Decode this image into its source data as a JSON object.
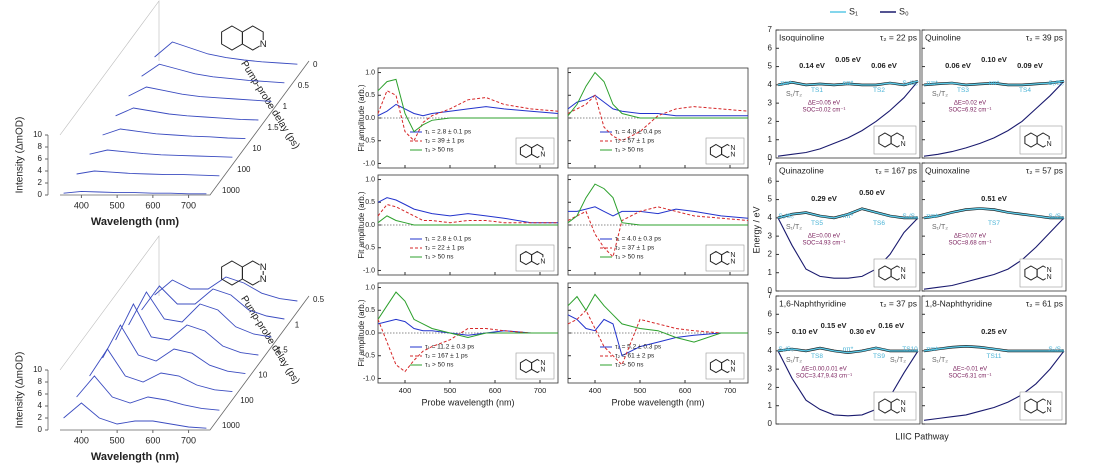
{
  "chart_data": [
    {
      "type": "waterfall",
      "xlabel": "Wavelength (nm)",
      "ylabel": "Intensity (ΔmOD)",
      "zlabel": "Pump-probe delay (ps)",
      "x": [
        350,
        400,
        450,
        500,
        550,
        600,
        650,
        700,
        750
      ],
      "xlim": [
        340,
        760
      ],
      "xticks": [
        400,
        500,
        600,
        700
      ],
      "ylim": [
        0,
        10
      ],
      "yticks": [
        0,
        2,
        4,
        6,
        8,
        10
      ],
      "zticks": [
        0,
        0.5,
        1,
        1.5,
        10,
        100,
        1000
      ],
      "color": "#3b4cc0",
      "atoms": [
        "N"
      ],
      "traces": [
        [
          0.3,
          0.6,
          0.5,
          0.4,
          0.4,
          0.3,
          0.3,
          0.2,
          0.2
        ],
        [
          0.5,
          1.0,
          0.8,
          0.6,
          0.5,
          0.4,
          0.4,
          0.3,
          0.2
        ],
        [
          0.8,
          1.5,
          1.2,
          0.9,
          0.7,
          0.6,
          0.5,
          0.4,
          0.3
        ],
        [
          1.0,
          2.0,
          1.6,
          1.2,
          1.0,
          0.8,
          0.7,
          0.5,
          0.4
        ],
        [
          1.2,
          2.5,
          2.0,
          1.5,
          1.2,
          1.0,
          0.8,
          0.6,
          0.5
        ],
        [
          1.5,
          3.0,
          2.4,
          1.8,
          1.4,
          1.2,
          1.0,
          0.8,
          0.6
        ],
        [
          1.8,
          3.8,
          3.0,
          2.2,
          1.7,
          1.4,
          1.1,
          0.9,
          0.7
        ],
        [
          2.0,
          4.5,
          3.5,
          2.5,
          1.9,
          1.5,
          1.2,
          1.0,
          0.8
        ]
      ]
    },
    {
      "type": "waterfall",
      "xlabel": "Wavelength (nm)",
      "ylabel": "Intensity (ΔmOD)",
      "zlabel": "Pump-probe delay (ps)",
      "x": [
        350,
        400,
        450,
        500,
        550,
        600,
        650,
        700,
        750
      ],
      "xlim": [
        340,
        760
      ],
      "xticks": [
        400,
        500,
        600,
        700
      ],
      "ylim": [
        0,
        10
      ],
      "yticks": [
        0,
        2,
        4,
        6,
        8,
        10
      ],
      "zticks": [
        0.5,
        1,
        1.5,
        10,
        100,
        1000
      ],
      "color": "#3b4cc0",
      "atoms": [
        "N",
        "N"
      ],
      "traces": [
        [
          2.0,
          4.5,
          2.0,
          1.0,
          1.5,
          1.5,
          1.0,
          0.5,
          0.3
        ],
        [
          2.5,
          6.0,
          2.5,
          1.5,
          2.5,
          2.0,
          1.2,
          0.6,
          0.3
        ],
        [
          3.0,
          7.5,
          3.0,
          2.0,
          3.5,
          3.0,
          1.5,
          0.7,
          0.4
        ],
        [
          3.0,
          8.5,
          3.5,
          2.5,
          4.5,
          3.8,
          1.8,
          0.8,
          0.4
        ],
        [
          3.0,
          9.0,
          3.5,
          3.0,
          5.5,
          4.5,
          2.0,
          0.9,
          0.5
        ],
        [
          2.5,
          8.0,
          3.5,
          3.0,
          6.0,
          5.0,
          2.2,
          1.0,
          0.5
        ],
        [
          2.0,
          6.0,
          3.0,
          3.0,
          5.5,
          4.5,
          2.0,
          1.0,
          0.5
        ],
        [
          1.5,
          4.0,
          2.5,
          2.5,
          4.5,
          3.5,
          1.8,
          0.9,
          0.5
        ]
      ]
    },
    {
      "type": "line-grid",
      "xlabel": "Probe wavelength (nm)",
      "ylabel": "Fit amplitude (arb.)",
      "x": [
        340,
        360,
        380,
        400,
        420,
        440,
        460,
        500,
        540,
        580,
        620,
        680,
        740
      ],
      "xlim": [
        340,
        740
      ],
      "xticks": [
        400,
        500,
        600,
        700
      ],
      "ylim": [
        -1.1,
        1.1
      ],
      "yticks": [
        {
          "value": -1,
          "label": "-1.0"
        },
        {
          "value": -0.5,
          "label": "-0.5"
        },
        {
          "value": 0,
          "label": "0.0"
        },
        {
          "value": 0.5,
          "label": "0.5"
        },
        {
          "value": 1,
          "label": "1.0"
        }
      ],
      "styles": [
        {
          "color": "#2233cc"
        },
        {
          "color": "#d62728",
          "dashed": true
        },
        {
          "color": "#2ca02c"
        }
      ],
      "panels": [
        {
          "atoms": [
            "N"
          ],
          "series": [
            {
              "name": "τ₁ = 2.8 ± 0.1 ps",
              "values": [
                0.05,
                0.15,
                0.3,
                0.2,
                0.1,
                0.05,
                0.1,
                0.15,
                0.2,
                0.25,
                0.2,
                0.15,
                0.1
              ]
            },
            {
              "name": "τ₂ = 39 ± 1 ps",
              "values": [
                0.1,
                0.6,
                0.5,
                -0.3,
                -0.5,
                -0.1,
                0.05,
                0.2,
                0.4,
                0.45,
                0.3,
                0.2,
                0.15
              ]
            },
            {
              "name": "τ₃ > 50 ns",
              "values": [
                0.6,
                0.8,
                0.85,
                0.1,
                -0.3,
                -0.15,
                -0.05,
                0,
                0,
                0,
                0,
                0,
                0
              ]
            }
          ]
        },
        {
          "atoms": [
            "N",
            "N"
          ],
          "series": [
            {
              "name": "τ₁ = 4.8 ± 0.4 ps",
              "values": [
                0.2,
                0.35,
                0.4,
                0.5,
                0.35,
                0.2,
                0.15,
                0.1,
                0.1,
                0.05,
                0.05,
                0.05,
                0.05
              ]
            },
            {
              "name": "τ₂ = 57 ± 1 ps",
              "values": [
                0.1,
                0.2,
                0.3,
                0.5,
                -0.2,
                -0.4,
                -0.5,
                -0.3,
                0.05,
                0.2,
                0.25,
                0.2,
                0.15
              ]
            },
            {
              "name": "τ₃ > 50 ns",
              "values": [
                0.05,
                0.3,
                0.7,
                1.0,
                0.8,
                0.3,
                0.1,
                0,
                0,
                0,
                0,
                0,
                0
              ]
            }
          ]
        },
        {
          "atoms": [
            "N"
          ],
          "series": [
            {
              "name": "τ₁ = 2.8 ± 0.1 ps",
              "values": [
                0.5,
                0.6,
                0.55,
                0.45,
                0.35,
                0.3,
                0.25,
                0.2,
                0.25,
                0.2,
                0.15,
                0.05,
                0.05
              ]
            },
            {
              "name": "τ₂ = 22 ± 1 ps",
              "values": [
                0.2,
                0.45,
                0.4,
                0.3,
                0.2,
                0.1,
                0.1,
                0.05,
                0.1,
                0.1,
                0.05,
                0.05,
                0.05
              ]
            },
            {
              "name": "τ₃ > 50 ns",
              "values": [
                0.05,
                0.2,
                0.1,
                0.05,
                0,
                0,
                0,
                0,
                0,
                0,
                0,
                0,
                0
              ]
            }
          ]
        },
        {
          "atoms": [
            "N",
            "N"
          ],
          "series": [
            {
              "name": "τ₁ = 4.0 ± 0.3 ps",
              "values": [
                0.3,
                0.3,
                0.35,
                0.4,
                0.3,
                0.2,
                0.3,
                0.3,
                0.25,
                0.35,
                0.3,
                0.2,
                0.15
              ]
            },
            {
              "name": "τ₂ = 37 ± 1 ps",
              "values": [
                0.1,
                0.2,
                0.3,
                -0.2,
                -0.5,
                -0.7,
                0.1,
                0.3,
                0.4,
                0.3,
                0.2,
                0.15,
                0.1
              ]
            },
            {
              "name": "τ₃ > 50 ns",
              "values": [
                0.05,
                0.2,
                0.6,
                0.9,
                0.8,
                0.6,
                0.05,
                0,
                0,
                0,
                0,
                0,
                0
              ]
            }
          ]
        },
        {
          "atoms": [
            "N",
            "N"
          ],
          "series": [
            {
              "name": "τ₁ = 11.2 ± 0.3 ps",
              "values": [
                0.2,
                0.25,
                0.3,
                0.25,
                0.1,
                0.05,
                0.05,
                0,
                -0.05,
                0,
                0.05,
                0,
                0
              ]
            },
            {
              "name": "τ₂ = 167 ± 1 ps",
              "values": [
                0.3,
                -0.2,
                -0.7,
                -0.85,
                -0.6,
                -0.4,
                -0.3,
                -0.15,
                0.1,
                0.1,
                0.05,
                0,
                0
              ]
            },
            {
              "name": "τ₃ > 50 ns",
              "values": [
                0.3,
                0.6,
                0.9,
                0.7,
                0.3,
                0.2,
                0.1,
                0,
                -0.1,
                0,
                0,
                0,
                0
              ]
            }
          ]
        },
        {
          "atoms": [
            "N",
            "N"
          ],
          "series": [
            {
              "name": "τ₁ = 5.2 ± 0.3 ps",
              "values": [
                0.4,
                0.3,
                0.1,
                0.05,
                0.3,
                0.2,
                -0.5,
                -0.3,
                -0.2,
                -0.1,
                -0.05,
                0,
                0
              ]
            },
            {
              "name": "τ₂ = 61 ± 2 ps",
              "values": [
                0.2,
                0.3,
                0.5,
                0.1,
                -0.3,
                -0.5,
                -0.7,
                0.3,
                0.2,
                0.1,
                0.05,
                0,
                0
              ]
            },
            {
              "name": "τ₃ > 50 ns",
              "values": [
                0.6,
                0.8,
                0.5,
                0.85,
                0.6,
                0.4,
                0.2,
                0.1,
                0.05,
                -0.1,
                -0.2,
                0,
                0
              ]
            }
          ]
        }
      ]
    },
    {
      "type": "energy-grid",
      "ylabel": "Energy / eV",
      "xlabel": "LIIC Pathway",
      "ylim": [
        0,
        7
      ],
      "yticks": [
        0,
        1,
        2,
        3,
        4,
        5,
        6,
        7
      ],
      "legend": [
        {
          "name": "S₁",
          "color": "#5bc8e6"
        },
        {
          "name": "S₀",
          "color": "#1a1a6e"
        }
      ],
      "panels": [
        {
          "title": "Isoquinoline",
          "tau": "τ₂ = 22 ps",
          "atoms": [
            "N"
          ],
          "barriers": [
            "0.14 eV",
            "0.05 eV",
            "0.06 eV"
          ],
          "states": [
            "ππ*",
            "TS1",
            "nπ*",
            "TS2",
            "S₁/S₀"
          ],
          "crossings": [
            "S₁/T₂"
          ],
          "delta_e": "ΔE=0.05 eV",
          "soc": "SOC=0.02 cm⁻¹",
          "s1": [
            4.0,
            4.14,
            4.0,
            4.05,
            4.0,
            4.06,
            4.0,
            4.0,
            4.1,
            4.0,
            4.2
          ],
          "s0": [
            0.1,
            0.2,
            0.3,
            0.5,
            0.8,
            1.1,
            1.5,
            2.0,
            2.6,
            3.3,
            4.2
          ]
        },
        {
          "title": "Quinoline",
          "tau": "τ₂ = 39 ps",
          "atoms": [
            "N"
          ],
          "barriers": [
            "0.06 eV",
            "0.10 eV",
            "0.09 eV"
          ],
          "states": [
            "ππ*",
            "TS3",
            "nπ*",
            "TS4",
            "S₁/S₀"
          ],
          "crossings": [
            "S₁/T₂"
          ],
          "delta_e": "ΔE=0.02 eV",
          "soc": "SOC=6.92 cm⁻¹",
          "s1": [
            4.0,
            4.06,
            4.1,
            4.0,
            4.05,
            4.09,
            4.0,
            4.0,
            4.05,
            4.1,
            4.2
          ],
          "s0": [
            0.1,
            0.2,
            0.35,
            0.55,
            0.8,
            1.1,
            1.5,
            2.0,
            2.7,
            3.4,
            4.2
          ]
        },
        {
          "title": "Quinazoline",
          "tau": "τ₂ = 167 ps",
          "atoms": [
            "N",
            "N"
          ],
          "barriers": [
            "0.29 eV",
            "0.50 eV"
          ],
          "states": [
            "S₁/S₀",
            "TS5",
            "nπ*",
            "TS6",
            "S₁/S₀"
          ],
          "crossings": [
            "S₁/T₂"
          ],
          "delta_e": "ΔE=0.00 eV",
          "soc": "SOC=4.93 cm⁻¹",
          "s1": [
            4.0,
            4.2,
            4.29,
            4.1,
            4.0,
            4.2,
            4.5,
            4.3,
            4.1,
            4.0,
            4.0
          ],
          "s0": [
            4.0,
            2.5,
            1.2,
            0.8,
            0.7,
            0.7,
            0.8,
            1.2,
            2.0,
            3.2,
            4.0
          ]
        },
        {
          "title": "Quinoxaline",
          "tau": "τ₂ = 57 ps",
          "atoms": [
            "N",
            "N"
          ],
          "barriers": [
            "0.51 eV"
          ],
          "states": [
            "ππ*",
            "TS7",
            "S₁/S₀"
          ],
          "crossings": [
            "S₁/T₂"
          ],
          "delta_e": "ΔE=0.07 eV",
          "soc": "SOC=8.68 cm⁻¹",
          "s1": [
            4.0,
            4.1,
            4.3,
            4.45,
            4.51,
            4.45,
            4.3,
            4.2,
            4.1,
            4.0,
            4.0
          ],
          "s0": [
            0.1,
            0.2,
            0.3,
            0.5,
            0.7,
            0.9,
            1.2,
            1.7,
            2.4,
            3.2,
            4.0
          ]
        },
        {
          "title": "1,6-Naphthyridine",
          "tau": "τ₂ = 37 ps",
          "atoms": [
            "N",
            "N"
          ],
          "barriers": [
            "0.10 eV",
            "0.15 eV",
            "0.30 eV",
            "0.16 eV"
          ],
          "states": [
            "S₁/S₀",
            "TS8",
            "nπ*",
            "TS9",
            "TS10"
          ],
          "crossings": [
            "S₁/T₂",
            "S₁/T₂"
          ],
          "delta_e": "ΔE=0.00,0.01 eV",
          "soc": "SOC=3.47,9.43 cm⁻¹",
          "s1": [
            4.0,
            4.1,
            4.0,
            4.15,
            4.0,
            3.9,
            4.0,
            4.16,
            4.0,
            4.0,
            4.0
          ],
          "s0": [
            4.0,
            2.5,
            1.3,
            0.8,
            0.5,
            0.45,
            0.5,
            0.8,
            1.5,
            2.8,
            4.0
          ]
        },
        {
          "title": "1,8-Naphthyridine",
          "tau": "τ₂ = 61 ps",
          "atoms": [
            "N",
            "N"
          ],
          "barriers": [
            "0.25 eV"
          ],
          "states": [
            "ππ*",
            "TS11",
            "S₁/S₀"
          ],
          "crossings": [
            "S₁/T₂"
          ],
          "delta_e": "ΔE=-0.01 eV",
          "soc": "SOC=6.31 cm⁻¹",
          "s1": [
            4.0,
            4.1,
            4.2,
            4.25,
            4.2,
            4.1,
            4.0,
            4.0,
            4.0,
            4.0,
            4.0
          ],
          "s0": [
            0.2,
            0.3,
            0.4,
            0.5,
            0.7,
            0.9,
            1.2,
            1.6,
            2.2,
            3.0,
            4.0
          ]
        }
      ]
    }
  ]
}
